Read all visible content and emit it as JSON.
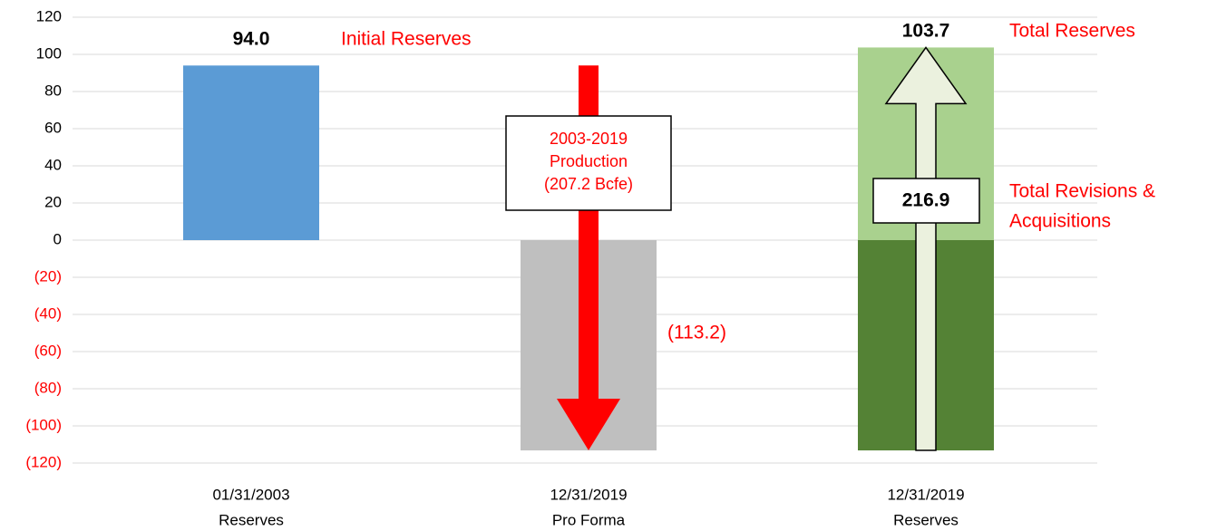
{
  "chart_data": {
    "type": "waterfall",
    "categories": [
      [
        "01/31/2003",
        "Reserves"
      ],
      [
        "12/31/2019",
        "Pro Forma"
      ],
      [
        "12/31/2019",
        "Reserves"
      ]
    ],
    "ylim": [
      -120,
      120
    ],
    "yticks": [
      {
        "value": -120,
        "label": "(120)"
      },
      {
        "value": -100,
        "label": "(100)"
      },
      {
        "value": -80,
        "label": "(80)"
      },
      {
        "value": -60,
        "label": "(60)"
      },
      {
        "value": -40,
        "label": "(40)"
      },
      {
        "value": -20,
        "label": "(20)"
      },
      0,
      20,
      40,
      60,
      80,
      100,
      120
    ],
    "negative_tick_color": "#ff0000",
    "grid": true,
    "bars": [
      {
        "category": 0,
        "value": 94.0,
        "color": "#5b9bd5",
        "value_label": "94.0",
        "label": "Initial Reserves"
      },
      {
        "category": 1,
        "value": -113.2,
        "color": "#bfbfbf",
        "value_label": "(113.2)"
      },
      {
        "category": 2,
        "value": 103.7,
        "color": "#a9d18e",
        "value_label": "103.7",
        "label": "Total Reserves"
      },
      {
        "category": 2,
        "value": -113.2,
        "color": "#548235"
      }
    ],
    "arrows": [
      {
        "category": 1,
        "from": 94.0,
        "to": -113.2,
        "value": 207.2,
        "color": "#ff0000",
        "label": [
          "2003-2019",
          "Production",
          "(207.2 Bcfe)"
        ]
      },
      {
        "category": 2,
        "from": -113.2,
        "to": 103.7,
        "value": 216.9,
        "color": "#ebf1de",
        "value_label": "216.9",
        "label": [
          "Total Revisions &",
          "Acquisitions"
        ]
      }
    ]
  }
}
